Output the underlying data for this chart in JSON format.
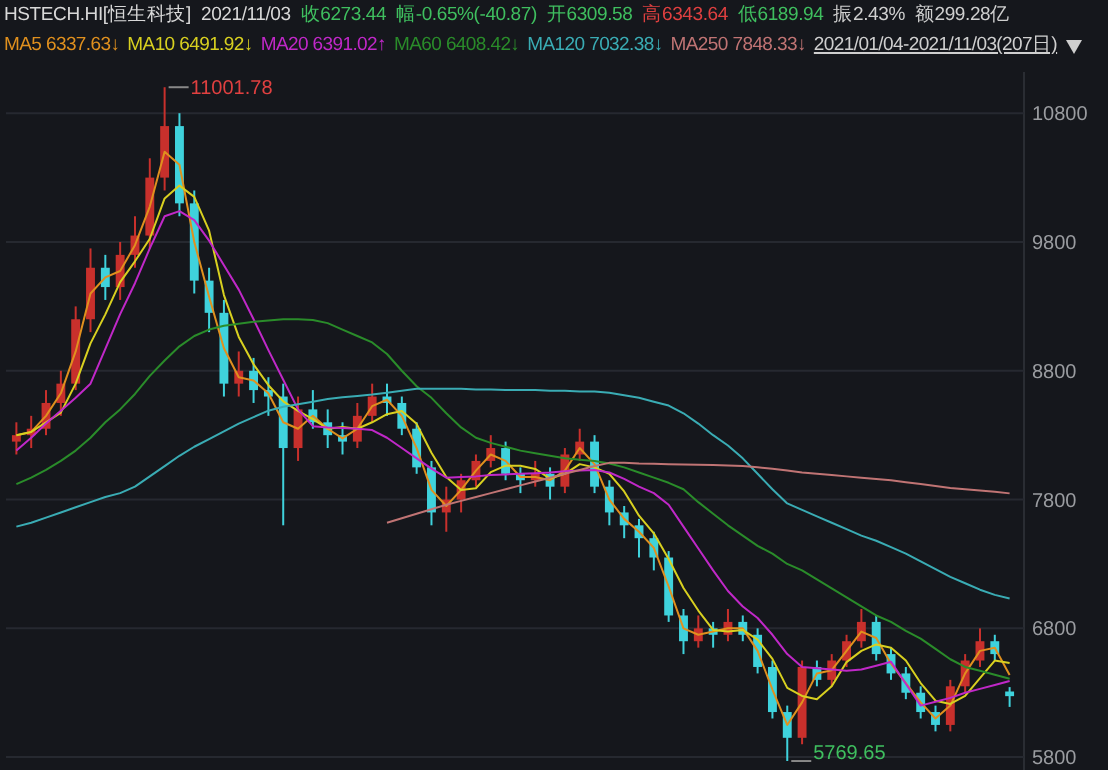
{
  "chart_data": {
    "type": "candlestick",
    "title": "HSTECH.HI[恒生科技]",
    "subtitle": "2021/11/03",
    "annotations": [
      "收6273.44",
      "幅-0.65%(-40.87)",
      "开6309.58",
      "高6343.64",
      "低6189.94",
      "振2.43%",
      "额299.28亿",
      "2021/01/04-2021/11/03(207日)",
      "11001.78",
      "5769.65"
    ],
    "categories": [
      null,
      null,
      null,
      null,
      null,
      null,
      null,
      null,
      null,
      null,
      null,
      null,
      null,
      null,
      null,
      null,
      null,
      null,
      null,
      null,
      null,
      null,
      null,
      null,
      null,
      null,
      null,
      null,
      null,
      null,
      null,
      null,
      null,
      null,
      null,
      null,
      null,
      null,
      null,
      null,
      null,
      null,
      null,
      null,
      null,
      null,
      null,
      null,
      null,
      null,
      null,
      null,
      null,
      null,
      null,
      null,
      null,
      null,
      null,
      null,
      null,
      null,
      null,
      null,
      null,
      null,
      null,
      null
    ],
    "ohlc": [
      [
        8250,
        8400,
        8150,
        8300
      ],
      [
        8300,
        8450,
        8200,
        8350
      ],
      [
        8350,
        8650,
        8300,
        8550
      ],
      [
        8550,
        8800,
        8450,
        8700
      ],
      [
        8700,
        9300,
        8650,
        9200
      ],
      [
        9200,
        9750,
        9100,
        9600
      ],
      [
        9600,
        9700,
        9350,
        9450
      ],
      [
        9450,
        9800,
        9350,
        9700
      ],
      [
        9700,
        10000,
        9600,
        9850
      ],
      [
        9850,
        10450,
        9750,
        10300
      ],
      [
        10300,
        11001.78,
        10200,
        10700
      ],
      [
        10700,
        10800,
        10000,
        10100
      ],
      [
        10100,
        10200,
        9400,
        9500
      ],
      [
        9500,
        9600,
        9100,
        9250
      ],
      [
        9250,
        9350,
        8600,
        8700
      ],
      [
        8700,
        8950,
        8600,
        8800
      ],
      [
        8800,
        8900,
        8550,
        8650
      ],
      [
        8650,
        8750,
        8450,
        8600
      ],
      [
        8600,
        8700,
        7600,
        8200
      ],
      [
        8200,
        8600,
        8100,
        8500
      ],
      [
        8500,
        8650,
        8350,
        8400
      ],
      [
        8400,
        8500,
        8200,
        8300
      ],
      [
        8300,
        8400,
        8150,
        8250
      ],
      [
        8250,
        8550,
        8200,
        8450
      ],
      [
        8450,
        8700,
        8400,
        8600
      ],
      [
        8600,
        8700,
        8450,
        8550
      ],
      [
        8550,
        8600,
        8300,
        8350
      ],
      [
        8350,
        8400,
        8000,
        8050
      ],
      [
        8050,
        8100,
        7600,
        7700
      ],
      [
        7700,
        7900,
        7550,
        7800
      ],
      [
        7800,
        8000,
        7700,
        7950
      ],
      [
        7950,
        8150,
        7900,
        8100
      ],
      [
        8100,
        8300,
        8050,
        8200
      ],
      [
        8200,
        8250,
        7950,
        8000
      ],
      [
        8000,
        8050,
        7850,
        7950
      ],
      [
        7950,
        8100,
        7900,
        8000
      ],
      [
        8000,
        8050,
        7800,
        7900
      ],
      [
        7900,
        8200,
        7850,
        8150
      ],
      [
        8150,
        8350,
        8100,
        8250
      ],
      [
        8250,
        8300,
        7850,
        7900
      ],
      [
        7900,
        7950,
        7600,
        7700
      ],
      [
        7700,
        7750,
        7500,
        7600
      ],
      [
        7600,
        7650,
        7350,
        7500
      ],
      [
        7500,
        7550,
        7250,
        7350
      ],
      [
        7350,
        7400,
        6850,
        6900
      ],
      [
        6900,
        6950,
        6600,
        6700
      ],
      [
        6700,
        6900,
        6650,
        6800
      ],
      [
        6800,
        6850,
        6650,
        6750
      ],
      [
        6750,
        6950,
        6700,
        6850
      ],
      [
        6850,
        6900,
        6700,
        6750
      ],
      [
        6750,
        6800,
        6450,
        6500
      ],
      [
        6500,
        6550,
        6100,
        6150
      ],
      [
        6150,
        6200,
        5769.65,
        5950
      ],
      [
        5950,
        6550,
        5900,
        6500
      ],
      [
        6500,
        6550,
        6350,
        6400
      ],
      [
        6400,
        6600,
        6350,
        6550
      ],
      [
        6550,
        6750,
        6500,
        6700
      ],
      [
        6700,
        6950,
        6650,
        6850
      ],
      [
        6850,
        6900,
        6550,
        6600
      ],
      [
        6600,
        6650,
        6400,
        6450
      ],
      [
        6450,
        6500,
        6250,
        6300
      ],
      [
        6300,
        6350,
        6100,
        6150
      ],
      [
        6150,
        6200,
        6000,
        6050
      ],
      [
        6050,
        6400,
        6000,
        6350
      ],
      [
        6350,
        6600,
        6300,
        6550
      ],
      [
        6550,
        6800,
        6500,
        6700
      ],
      [
        6700,
        6750,
        6550,
        6600
      ],
      [
        6309.58,
        6343.64,
        6189.94,
        6273.44
      ]
    ],
    "series": [
      {
        "name": "MA5 6337.63↓",
        "type": "line",
        "color": "#e0901e",
        "values": [
          8300,
          8325,
          8450,
          8625,
          8950,
          9400,
          9525,
          9575,
          9775,
          10075,
          10500,
          10400,
          9800,
          9375,
          8975,
          8750,
          8725,
          8625,
          8400,
          8350,
          8450,
          8350,
          8275,
          8350,
          8525,
          8575,
          8450,
          8200,
          7875,
          7750,
          7875,
          8025,
          8150,
          8100,
          7975,
          7975,
          7950,
          8025,
          8200,
          8075,
          7800,
          7650,
          7550,
          7425,
          7125,
          6800,
          6750,
          6775,
          6800,
          6800,
          6625,
          6325,
          6050,
          6225,
          6450,
          6475,
          6625,
          6775,
          6725,
          6525,
          6375,
          6225,
          6100,
          6200,
          6450,
          6625,
          6650,
          6437
        ]
      },
      {
        "name": "MA10 6491.92↓",
        "type": "line",
        "color": "#d8d020",
        "values": [
          8300,
          8325,
          8400,
          8475,
          8700,
          9013,
          9238,
          9488,
          9650,
          9825,
          10138,
          10238,
          10150,
          9888,
          9388,
          9063,
          8850,
          8688,
          8563,
          8488,
          8425,
          8350,
          8363,
          8350,
          8400,
          8463,
          8488,
          8388,
          8163,
          7975,
          7875,
          7888,
          8013,
          8063,
          8063,
          8038,
          7963,
          8000,
          8075,
          8050,
          8000,
          7863,
          7675,
          7538,
          7338,
          7113,
          6938,
          6788,
          6775,
          6788,
          6713,
          6563,
          6338,
          6275,
          6250,
          6350,
          6538,
          6625,
          6675,
          6650,
          6550,
          6375,
          6238,
          6213,
          6275,
          6413,
          6550,
          6531
        ]
      },
      {
        "name": "MA20 6391.02↑",
        "type": "line",
        "color": "#c028c8",
        "values": [
          8180,
          8280,
          8390,
          8490,
          8590,
          8700,
          8970,
          9240,
          9480,
          9750,
          10000,
          10040,
          9970,
          9810,
          9620,
          9430,
          9200,
          8960,
          8730,
          8500,
          8370,
          8360,
          8355,
          8350,
          8340,
          8280,
          8200,
          8120,
          8040,
          7970,
          7975,
          7980,
          7990,
          7995,
          8000,
          8005,
          8010,
          8020,
          8025,
          8030,
          8010,
          7960,
          7900,
          7850,
          7760,
          7590,
          7420,
          7250,
          7090,
          6970,
          6880,
          6750,
          6600,
          6500,
          6490,
          6480,
          6470,
          6480,
          6510,
          6540,
          6370,
          6200,
          6230,
          6260,
          6300,
          6330,
          6360,
          6391
        ]
      },
      {
        "name": "MA60 6408.42↓",
        "type": "line",
        "color": "#2a8c2a",
        "values": [
          7920,
          7970,
          8030,
          8100,
          8180,
          8280,
          8400,
          8500,
          8620,
          8760,
          8880,
          8990,
          9070,
          9120,
          9150,
          9165,
          9180,
          9190,
          9200,
          9200,
          9195,
          9170,
          9120,
          9070,
          9020,
          8930,
          8800,
          8680,
          8590,
          8470,
          8360,
          8280,
          8240,
          8210,
          8180,
          8160,
          8140,
          8120,
          8110,
          8100,
          8080,
          8050,
          8010,
          7970,
          7930,
          7880,
          7780,
          7690,
          7600,
          7520,
          7440,
          7380,
          7300,
          7250,
          7180,
          7110,
          7040,
          6970,
          6900,
          6850,
          6780,
          6720,
          6640,
          6560,
          6500,
          6470,
          6440,
          6408
        ]
      },
      {
        "name": "MA120 7032.38↓",
        "type": "line",
        "color": "#3aacb4",
        "values": [
          7590,
          7620,
          7660,
          7700,
          7740,
          7780,
          7820,
          7850,
          7900,
          7980,
          8060,
          8140,
          8210,
          8270,
          8330,
          8390,
          8440,
          8490,
          8520,
          8540,
          8560,
          8580,
          8595,
          8605,
          8615,
          8630,
          8645,
          8660,
          8660,
          8660,
          8660,
          8655,
          8655,
          8650,
          8650,
          8650,
          8645,
          8645,
          8640,
          8640,
          8630,
          8610,
          8590,
          8560,
          8530,
          8470,
          8390,
          8300,
          8220,
          8120,
          8000,
          7880,
          7770,
          7720,
          7670,
          7620,
          7570,
          7520,
          7480,
          7430,
          7380,
          7320,
          7260,
          7200,
          7150,
          7100,
          7060,
          7032
        ]
      },
      {
        "name": "MA250 7848.33↓",
        "type": "line",
        "color": "#c07474",
        "values": [
          null,
          null,
          null,
          null,
          null,
          null,
          null,
          null,
          null,
          null,
          null,
          null,
          null,
          null,
          null,
          null,
          null,
          null,
          null,
          null,
          null,
          null,
          null,
          null,
          null,
          7620,
          7655,
          7690,
          7725,
          7760,
          7790,
          7820,
          7850,
          7880,
          7910,
          7940,
          7970,
          8000,
          8030,
          8060,
          8085,
          8085,
          8080,
          8078,
          8075,
          8072,
          8070,
          8068,
          8065,
          8060,
          8050,
          8040,
          8025,
          8010,
          8000,
          7990,
          7980,
          7970,
          7960,
          7950,
          7935,
          7920,
          7905,
          7890,
          7880,
          7870,
          7860,
          7848
        ]
      }
    ],
    "ylim": [
      5700,
      11120
    ],
    "yticks": [
      5800,
      6800,
      7800,
      8800,
      9800,
      10800
    ],
    "grid": "y",
    "legend": "top left"
  }
}
